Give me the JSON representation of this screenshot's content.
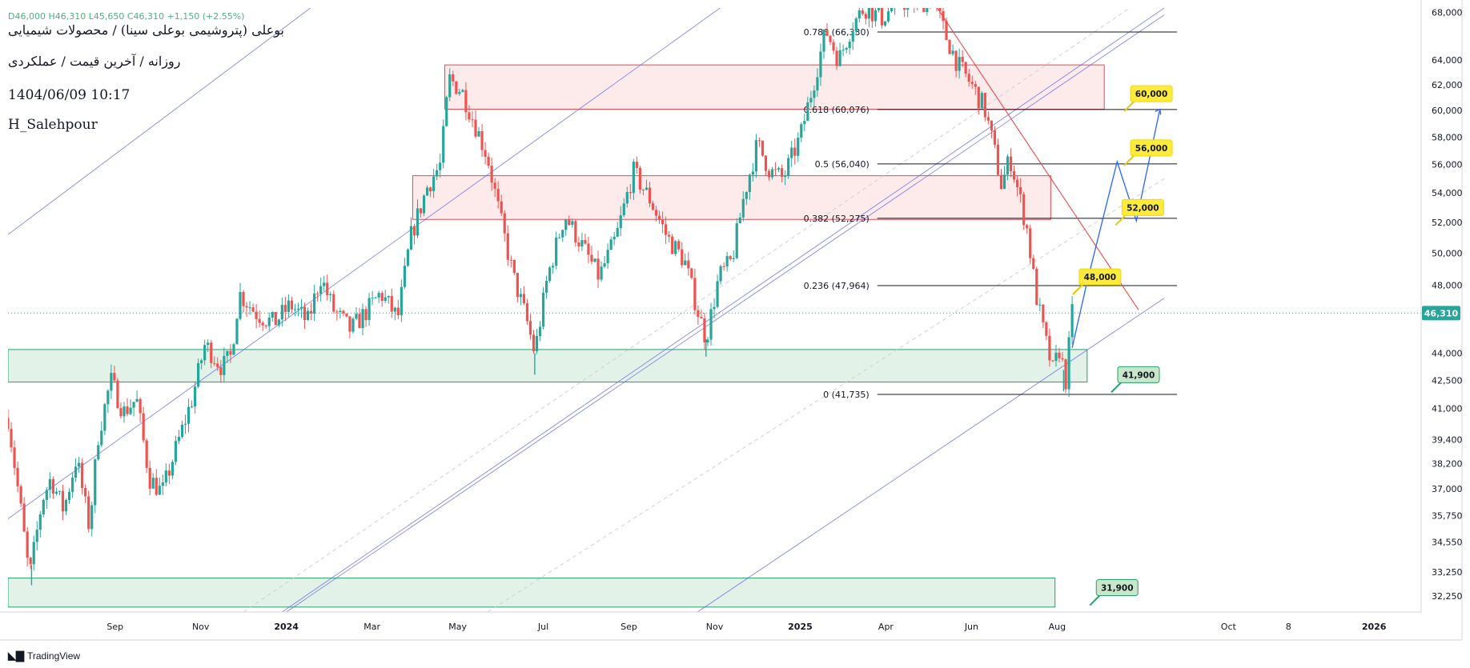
{
  "header": {
    "ohlc_line": "D46,000 H46,310 L45,650 C46,310 +1,150 (+2.55%)",
    "title": "بوعلی (پتروشیمی بوعلی سینا) / محصولات شیمیایی",
    "subtitle": "روزانه / آخرین قیمت / عملکردی",
    "timestamp": "1404/06/09 10:17",
    "author": "H_Salehpour"
  },
  "branding": {
    "logo": "tradingview-logo-icon",
    "name": "TradingView"
  },
  "colors": {
    "up": "#26a69a",
    "down": "#ef5350",
    "channel": "#5b5fe0",
    "fib": "#131722",
    "supply_zone": "#e8474f",
    "demand_zone": "#25a06a",
    "callout_yellow": "#ffeb3b",
    "callout_green": "#c8e6c9",
    "price_tag": "#26a69a",
    "projection": "#2962ff",
    "trendline": "#ef3b3b"
  },
  "chart_data": {
    "type": "candlestick",
    "y_scale": "log",
    "ylim": [
      31600,
      68400
    ],
    "y_ticks": [
      {
        "v": 68000,
        "label": "68,000"
      },
      {
        "v": 64000,
        "label": "64,000"
      },
      {
        "v": 62000,
        "label": "62,000"
      },
      {
        "v": 60000,
        "label": "60,000"
      },
      {
        "v": 58000,
        "label": "58,000"
      },
      {
        "v": 56000,
        "label": "56,000"
      },
      {
        "v": 54000,
        "label": "54,000"
      },
      {
        "v": 52000,
        "label": "52,000"
      },
      {
        "v": 50000,
        "label": "50,000"
      },
      {
        "v": 48000,
        "label": "48,000"
      },
      {
        "v": 44000,
        "label": "44,000"
      },
      {
        "v": 42500,
        "label": "42,500"
      },
      {
        "v": 41000,
        "label": "41,000"
      },
      {
        "v": 39400,
        "label": "39,400"
      },
      {
        "v": 38200,
        "label": "38,200"
      },
      {
        "v": 37000,
        "label": "37,000"
      },
      {
        "v": 35750,
        "label": "35,750"
      },
      {
        "v": 34550,
        "label": "34,550"
      },
      {
        "v": 33250,
        "label": "33,250"
      },
      {
        "v": 32250,
        "label": "32,250"
      }
    ],
    "x_ticks": [
      {
        "t": 2.5,
        "label": "Sep",
        "bold": false
      },
      {
        "t": 4.5,
        "label": "Nov",
        "bold": false
      },
      {
        "t": 6.5,
        "label": "2024",
        "bold": true
      },
      {
        "t": 8.5,
        "label": "Mar",
        "bold": false
      },
      {
        "t": 10.5,
        "label": "May",
        "bold": false
      },
      {
        "t": 12.5,
        "label": "Jul",
        "bold": false
      },
      {
        "t": 14.5,
        "label": "Sep",
        "bold": false
      },
      {
        "t": 16.5,
        "label": "Nov",
        "bold": false
      },
      {
        "t": 18.5,
        "label": "2025",
        "bold": true
      },
      {
        "t": 20.5,
        "label": "Apr",
        "bold": false
      },
      {
        "t": 22.5,
        "label": "Jun",
        "bold": false
      },
      {
        "t": 24.5,
        "label": "Aug",
        "bold": false
      },
      {
        "t": 28.5,
        "label": "Oct",
        "bold": false
      },
      {
        "t": 29.9,
        "label": "8",
        "bold": false
      },
      {
        "t": 31.9,
        "label": "2026",
        "bold": true
      }
    ],
    "last_price": {
      "value": 46310,
      "label": "46,310"
    },
    "price_path": [
      [
        0.0,
        40500
      ],
      [
        0.3,
        36000
      ],
      [
        0.5,
        33000
      ],
      [
        0.8,
        36500
      ],
      [
        1.0,
        37500
      ],
      [
        1.3,
        36000
      ],
      [
        1.6,
        38500
      ],
      [
        1.9,
        35200
      ],
      [
        2.1,
        39500
      ],
      [
        2.4,
        42500
      ],
      [
        2.7,
        40800
      ],
      [
        3.0,
        41500
      ],
      [
        3.3,
        37500
      ],
      [
        3.6,
        36800
      ],
      [
        3.9,
        38800
      ],
      [
        4.3,
        41500
      ],
      [
        4.6,
        44500
      ],
      [
        5.0,
        43200
      ],
      [
        5.2,
        43800
      ],
      [
        5.4,
        47500
      ],
      [
        5.8,
        46300
      ],
      [
        6.2,
        45700
      ],
      [
        6.6,
        46800
      ],
      [
        7.0,
        45800
      ],
      [
        7.3,
        48500
      ],
      [
        7.6,
        46500
      ],
      [
        8.0,
        45300
      ],
      [
        8.4,
        46500
      ],
      [
        8.7,
        47500
      ],
      [
        9.1,
        46000
      ],
      [
        9.4,
        51000
      ],
      [
        9.8,
        54500
      ],
      [
        10.1,
        56000
      ],
      [
        10.3,
        62500
      ],
      [
        10.6,
        61500
      ],
      [
        10.9,
        59000
      ],
      [
        11.2,
        56500
      ],
      [
        11.5,
        52200
      ],
      [
        11.8,
        48500
      ],
      [
        12.1,
        46000
      ],
      [
        12.3,
        44000
      ],
      [
        12.6,
        48500
      ],
      [
        13.0,
        52500
      ],
      [
        13.4,
        50500
      ],
      [
        13.8,
        48500
      ],
      [
        14.2,
        51000
      ],
      [
        14.6,
        55500
      ],
      [
        15.0,
        53500
      ],
      [
        15.4,
        51000
      ],
      [
        15.8,
        49500
      ],
      [
        16.1,
        46500
      ],
      [
        16.3,
        44800
      ],
      [
        16.6,
        48500
      ],
      [
        16.9,
        49500
      ],
      [
        17.2,
        54000
      ],
      [
        17.5,
        57500
      ],
      [
        17.8,
        55500
      ],
      [
        18.1,
        55000
      ],
      [
        18.5,
        58000
      ],
      [
        18.8,
        62000
      ],
      [
        19.1,
        66500
      ],
      [
        19.4,
        64000
      ],
      [
        19.7,
        66800
      ],
      [
        20.0,
        68500
      ],
      [
        20.4,
        67500
      ],
      [
        20.8,
        69000
      ],
      [
        21.2,
        68800
      ],
      [
        21.6,
        69200
      ],
      [
        21.9,
        66000
      ],
      [
        22.2,
        63500
      ],
      [
        22.5,
        62000
      ],
      [
        22.8,
        60200
      ],
      [
        23.0,
        57500
      ],
      [
        23.2,
        54500
      ],
      [
        23.4,
        56500
      ],
      [
        23.6,
        54000
      ],
      [
        23.8,
        51500
      ],
      [
        24.0,
        47500
      ],
      [
        24.2,
        45000
      ],
      [
        24.4,
        43000
      ],
      [
        24.55,
        44200
      ],
      [
        24.7,
        42500
      ],
      [
        24.85,
        46310
      ]
    ],
    "wick_lows": [
      [
        0.55,
        32700
      ],
      [
        12.3,
        42800
      ],
      [
        16.3,
        43800
      ],
      [
        24.65,
        41900
      ]
    ],
    "fibonacci": [
      {
        "level": "0.786",
        "price": 66330,
        "label": "0.786 (66,330)"
      },
      {
        "level": "0.618",
        "price": 60076,
        "label": "0.618 (60,076)"
      },
      {
        "level": "0.5",
        "price": 56040,
        "label": "0.5 (56,040)"
      },
      {
        "level": "0.382",
        "price": 52275,
        "label": "0.382 (52,275)"
      },
      {
        "level": "0.236",
        "price": 47964,
        "label": "0.236 (47,964)"
      },
      {
        "level": "0",
        "price": 41735,
        "label": "0 (41,735)"
      }
    ],
    "fib_t_range": [
      20.3,
      27.3
    ],
    "zones": [
      {
        "kind": "supply",
        "t0": 10.2,
        "t1": 25.6,
        "p_top": 63600,
        "p_bot": 60100
      },
      {
        "kind": "supply",
        "t0": 9.45,
        "t1": 24.35,
        "p_top": 55200,
        "p_bot": 52200
      },
      {
        "kind": "demand",
        "t0": 0.0,
        "t1": 25.2,
        "p_top": 44200,
        "p_bot": 42400
      },
      {
        "kind": "demand",
        "t0": 0.0,
        "t1": 24.45,
        "p_top": 33000,
        "p_bot": 31800
      }
    ],
    "channel_lines": [
      {
        "style": "solid",
        "pts": [
          [
            0.0,
            51200
          ],
          [
            7.8,
            70500
          ]
        ]
      },
      {
        "style": "solid",
        "pts": [
          [
            0.0,
            35600
          ],
          [
            17.4,
            70500
          ]
        ]
      },
      {
        "style": "dashed",
        "pts": [
          [
            5.5,
            31600
          ],
          [
            27.0,
            70500
          ]
        ]
      },
      {
        "style": "solid",
        "pts": [
          [
            6.4,
            31600
          ],
          [
            27.0,
            68400
          ]
        ]
      },
      {
        "style": "solid",
        "pts": [
          [
            6.5,
            31600
          ],
          [
            27.0,
            67800
          ]
        ]
      },
      {
        "style": "dashed",
        "pts": [
          [
            11.2,
            31600
          ],
          [
            27.0,
            55000
          ]
        ]
      },
      {
        "style": "solid",
        "pts": [
          [
            16.1,
            31600
          ],
          [
            27.0,
            47200
          ]
        ]
      }
    ],
    "trendline": {
      "pts": [
        [
          21.7,
          68400
        ],
        [
          26.4,
          46500
        ]
      ]
    },
    "projection_path": [
      [
        24.85,
        44300
      ],
      [
        25.2,
        48200
      ],
      [
        25.9,
        56200
      ],
      [
        26.35,
        52100
      ],
      [
        26.9,
        60100
      ]
    ],
    "callouts": [
      {
        "label": "60,000",
        "t": 26.7,
        "price": 61300,
        "style": "yellow"
      },
      {
        "label": "56,000",
        "t": 26.7,
        "price": 57200,
        "style": "yellow"
      },
      {
        "label": "52,000",
        "t": 26.5,
        "price": 53000,
        "style": "yellow"
      },
      {
        "label": "48,000",
        "t": 25.5,
        "price": 48500,
        "style": "yellow"
      },
      {
        "label": "41,900",
        "t": 26.4,
        "price": 42800,
        "style": "green"
      },
      {
        "label": "31,900",
        "t": 25.9,
        "price": 32600,
        "style": "green"
      }
    ]
  }
}
